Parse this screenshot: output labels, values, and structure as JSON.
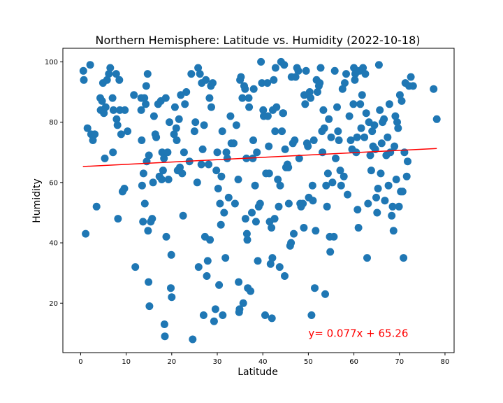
{
  "chart_data": {
    "type": "scatter",
    "title": "Northern Hemisphere: Latitude vs. Humidity (2022-10-18)",
    "xlabel": "Latitude",
    "ylabel": "Humidity",
    "xlim": [
      -3.9,
      82
    ],
    "ylim": [
      3.6,
      104.5
    ],
    "xticks": [
      0,
      10,
      20,
      30,
      40,
      50,
      60,
      70,
      80
    ],
    "yticks": [
      20,
      40,
      60,
      80,
      100
    ],
    "grid": false,
    "point_color": "#1f77b4",
    "regression": {
      "slope": 0.077,
      "intercept": 65.26,
      "x_range": [
        0.5,
        78.2
      ],
      "color": "#ff0000",
      "equation_label": "y= 0.077x + 65.26",
      "label_position": [
        50,
        10
      ]
    },
    "points": [
      [
        0.6,
        97
      ],
      [
        0.7,
        94
      ],
      [
        1.1,
        43
      ],
      [
        1.5,
        78
      ],
      [
        2.1,
        99
      ],
      [
        2.3,
        76
      ],
      [
        2.7,
        74
      ],
      [
        3.1,
        76
      ],
      [
        3.5,
        52
      ],
      [
        4.3,
        88
      ],
      [
        4.4,
        84
      ],
      [
        4.7,
        87
      ],
      [
        4.9,
        93
      ],
      [
        5.1,
        83
      ],
      [
        5.3,
        68
      ],
      [
        5.5,
        85
      ],
      [
        5.8,
        94
      ],
      [
        6.2,
        96
      ],
      [
        6.5,
        98
      ],
      [
        7.0,
        88
      ],
      [
        7.1,
        70
      ],
      [
        7.2,
        84
      ],
      [
        7.8,
        96
      ],
      [
        7.9,
        81
      ],
      [
        8.1,
        79
      ],
      [
        8.2,
        48
      ],
      [
        8.5,
        94
      ],
      [
        8.6,
        84
      ],
      [
        8.9,
        76
      ],
      [
        9.2,
        57
      ],
      [
        9.6,
        58
      ],
      [
        9.7,
        84
      ],
      [
        10.3,
        77
      ],
      [
        11.7,
        89
      ],
      [
        12.0,
        32
      ],
      [
        13.3,
        88
      ],
      [
        13.3,
        84
      ],
      [
        13.4,
        74
      ],
      [
        13.5,
        59
      ],
      [
        13.7,
        47
      ],
      [
        13.8,
        63
      ],
      [
        14.0,
        88
      ],
      [
        14.1,
        53
      ],
      [
        14.3,
        86
      ],
      [
        14.4,
        92
      ],
      [
        14.5,
        67
      ],
      [
        14.7,
        96
      ],
      [
        14.8,
        44
      ],
      [
        14.9,
        27
      ],
      [
        15.0,
        69
      ],
      [
        15.1,
        19
      ],
      [
        15.4,
        47
      ],
      [
        15.7,
        48
      ],
      [
        15.9,
        60
      ],
      [
        16.1,
        82
      ],
      [
        16.4,
        76
      ],
      [
        16.6,
        75
      ],
      [
        17.0,
        86
      ],
      [
        17.3,
        62
      ],
      [
        17.6,
        87
      ],
      [
        17.8,
        61
      ],
      [
        17.9,
        70
      ],
      [
        18.1,
        64
      ],
      [
        18.3,
        68
      ],
      [
        18.4,
        13
      ],
      [
        18.5,
        9
      ],
      [
        18.7,
        88
      ],
      [
        18.8,
        42
      ],
      [
        19.1,
        70
      ],
      [
        19.3,
        61
      ],
      [
        19.5,
        80
      ],
      [
        19.8,
        25
      ],
      [
        19.9,
        36
      ],
      [
        20.0,
        22
      ],
      [
        20.5,
        76
      ],
      [
        20.7,
        85
      ],
      [
        21.0,
        78
      ],
      [
        21.1,
        74
      ],
      [
        21.3,
        64
      ],
      [
        21.6,
        81
      ],
      [
        21.8,
        65
      ],
      [
        22.0,
        89
      ],
      [
        22.3,
        63
      ],
      [
        22.5,
        49
      ],
      [
        22.7,
        70
      ],
      [
        22.9,
        86
      ],
      [
        23.2,
        90
      ],
      [
        23.9,
        67
      ],
      [
        24.3,
        96
      ],
      [
        24.6,
        8
      ],
      [
        25.0,
        77
      ],
      [
        25.2,
        80
      ],
      [
        25.6,
        60
      ],
      [
        25.8,
        98
      ],
      [
        25.9,
        32
      ],
      [
        26.2,
        96
      ],
      [
        26.5,
        66
      ],
      [
        26.6,
        93
      ],
      [
        26.8,
        71
      ],
      [
        27.0,
        16
      ],
      [
        27.1,
        79
      ],
      [
        27.3,
        42
      ],
      [
        27.5,
        94
      ],
      [
        27.7,
        29
      ],
      [
        27.9,
        34
      ],
      [
        28.1,
        66
      ],
      [
        28.3,
        88
      ],
      [
        28.4,
        41
      ],
      [
        28.6,
        92
      ],
      [
        28.7,
        85
      ],
      [
        29.0,
        93
      ],
      [
        29.3,
        14
      ],
      [
        29.6,
        18
      ],
      [
        29.8,
        64
      ],
      [
        30.0,
        70
      ],
      [
        30.2,
        58
      ],
      [
        30.4,
        26
      ],
      [
        30.6,
        53
      ],
      [
        30.8,
        46
      ],
      [
        30.9,
        62
      ],
      [
        31.1,
        77
      ],
      [
        31.2,
        16
      ],
      [
        31.5,
        50
      ],
      [
        31.8,
        35
      ],
      [
        32.0,
        70
      ],
      [
        32.2,
        68
      ],
      [
        32.5,
        55
      ],
      [
        32.9,
        82
      ],
      [
        33.1,
        73
      ],
      [
        33.6,
        73
      ],
      [
        33.9,
        53
      ],
      [
        34.2,
        79
      ],
      [
        34.6,
        61
      ],
      [
        34.7,
        27
      ],
      [
        34.8,
        17
      ],
      [
        34.9,
        18
      ],
      [
        35.0,
        94
      ],
      [
        35.2,
        95
      ],
      [
        35.5,
        88
      ],
      [
        35.7,
        20
      ],
      [
        35.9,
        92
      ],
      [
        36.1,
        91
      ],
      [
        36.2,
        48
      ],
      [
        36.4,
        68
      ],
      [
        36.5,
        43
      ],
      [
        36.6,
        41
      ],
      [
        36.7,
        25
      ],
      [
        36.9,
        88
      ],
      [
        37.0,
        85
      ],
      [
        37.3,
        24
      ],
      [
        37.6,
        50
      ],
      [
        37.8,
        68
      ],
      [
        37.9,
        74
      ],
      [
        38.0,
        91
      ],
      [
        38.3,
        59
      ],
      [
        38.5,
        47
      ],
      [
        38.7,
        70
      ],
      [
        38.9,
        34
      ],
      [
        39.1,
        52
      ],
      [
        39.4,
        53
      ],
      [
        39.6,
        100
      ],
      [
        39.8,
        93
      ],
      [
        40.1,
        84
      ],
      [
        40.2,
        82
      ],
      [
        40.5,
        16
      ],
      [
        40.7,
        63
      ],
      [
        41.0,
        93
      ],
      [
        41.1,
        82
      ],
      [
        41.3,
        72
      ],
      [
        41.4,
        63
      ],
      [
        41.5,
        47
      ],
      [
        41.7,
        33
      ],
      [
        41.9,
        45
      ],
      [
        42.0,
        15
      ],
      [
        42.1,
        35
      ],
      [
        42.2,
        84
      ],
      [
        42.4,
        94
      ],
      [
        42.6,
        48
      ],
      [
        42.7,
        77
      ],
      [
        42.8,
        98
      ],
      [
        43.0,
        85
      ],
      [
        43.3,
        61
      ],
      [
        43.5,
        52
      ],
      [
        43.7,
        32
      ],
      [
        43.8,
        59
      ],
      [
        44.0,
        100
      ],
      [
        44.2,
        77
      ],
      [
        44.4,
        83
      ],
      [
        44.5,
        83
      ],
      [
        44.7,
        99
      ],
      [
        44.8,
        29
      ],
      [
        44.9,
        71
      ],
      [
        45.1,
        65
      ],
      [
        45.4,
        66
      ],
      [
        45.6,
        65
      ],
      [
        45.7,
        53
      ],
      [
        46.0,
        39
      ],
      [
        46.2,
        40
      ],
      [
        46.3,
        95
      ],
      [
        46.6,
        73
      ],
      [
        46.8,
        43
      ],
      [
        47.0,
        74
      ],
      [
        47.2,
        95
      ],
      [
        47.5,
        98
      ],
      [
        47.8,
        97
      ],
      [
        48.0,
        68
      ],
      [
        48.2,
        53
      ],
      [
        48.4,
        52
      ],
      [
        48.8,
        53
      ],
      [
        49.0,
        45
      ],
      [
        49.1,
        89
      ],
      [
        49.3,
        86
      ],
      [
        49.5,
        97
      ],
      [
        49.7,
        73
      ],
      [
        49.9,
        72
      ],
      [
        50.1,
        55
      ],
      [
        50.3,
        90
      ],
      [
        50.5,
        88
      ],
      [
        50.7,
        16
      ],
      [
        50.9,
        59
      ],
      [
        51.0,
        54
      ],
      [
        51.2,
        74
      ],
      [
        51.4,
        25
      ],
      [
        51.6,
        44
      ],
      [
        51.8,
        94
      ],
      [
        52.0,
        90
      ],
      [
        52.3,
        92
      ],
      [
        52.5,
        93
      ],
      [
        52.7,
        98
      ],
      [
        53.0,
        77
      ],
      [
        53.1,
        70
      ],
      [
        53.3,
        84
      ],
      [
        53.5,
        78
      ],
      [
        53.7,
        23
      ],
      [
        53.9,
        59
      ],
      [
        54.1,
        52
      ],
      [
        54.3,
        63
      ],
      [
        54.5,
        81
      ],
      [
        54.7,
        42
      ],
      [
        54.8,
        37
      ],
      [
        55.0,
        75
      ],
      [
        55.3,
        60
      ],
      [
        55.6,
        42
      ],
      [
        55.8,
        97
      ],
      [
        56.0,
        68
      ],
      [
        56.3,
        85
      ],
      [
        56.5,
        77
      ],
      [
        56.7,
        74
      ],
      [
        57.0,
        64
      ],
      [
        57.2,
        59
      ],
      [
        57.5,
        91
      ],
      [
        57.8,
        62
      ],
      [
        58.0,
        93
      ],
      [
        58.3,
        96
      ],
      [
        58.6,
        56
      ],
      [
        59.0,
        82
      ],
      [
        59.3,
        74
      ],
      [
        59.6,
        71
      ],
      [
        59.9,
        86
      ],
      [
        60.0,
        98
      ],
      [
        60.2,
        94
      ],
      [
        60.3,
        96
      ],
      [
        60.5,
        70
      ],
      [
        60.7,
        75
      ],
      [
        60.8,
        51
      ],
      [
        61.0,
        45
      ],
      [
        61.2,
        97
      ],
      [
        61.4,
        86
      ],
      [
        61.6,
        78
      ],
      [
        61.8,
        89
      ],
      [
        62.0,
        98
      ],
      [
        62.3,
        75
      ],
      [
        62.5,
        96
      ],
      [
        62.7,
        83
      ],
      [
        62.9,
        35
      ],
      [
        63.1,
        53
      ],
      [
        63.3,
        80
      ],
      [
        63.6,
        69
      ],
      [
        63.8,
        64
      ],
      [
        64.0,
        77
      ],
      [
        64.2,
        72
      ],
      [
        64.5,
        79
      ],
      [
        64.7,
        71
      ],
      [
        64.9,
        55
      ],
      [
        65.1,
        50
      ],
      [
        65.3,
        58
      ],
      [
        65.5,
        99
      ],
      [
        65.7,
        84
      ],
      [
        65.9,
        63
      ],
      [
        66.1,
        73
      ],
      [
        66.3,
        80
      ],
      [
        66.6,
        81
      ],
      [
        66.8,
        54
      ],
      [
        67.1,
        69
      ],
      [
        67.4,
        75
      ],
      [
        67.6,
        59
      ],
      [
        67.8,
        86
      ],
      [
        68.0,
        70
      ],
      [
        68.3,
        49
      ],
      [
        68.5,
        52
      ],
      [
        68.7,
        44
      ],
      [
        68.9,
        72
      ],
      [
        69.1,
        82
      ],
      [
        69.3,
        61
      ],
      [
        69.5,
        80
      ],
      [
        69.7,
        78
      ],
      [
        69.9,
        52
      ],
      [
        70.1,
        89
      ],
      [
        70.3,
        57
      ],
      [
        70.5,
        87
      ],
      [
        70.7,
        57
      ],
      [
        70.9,
        35
      ],
      [
        71.1,
        70
      ],
      [
        71.3,
        93
      ],
      [
        71.6,
        62
      ],
      [
        71.8,
        67
      ],
      [
        72.1,
        92
      ],
      [
        72.5,
        95
      ],
      [
        73.0,
        92
      ],
      [
        77.5,
        91
      ],
      [
        78.2,
        81
      ]
    ]
  }
}
